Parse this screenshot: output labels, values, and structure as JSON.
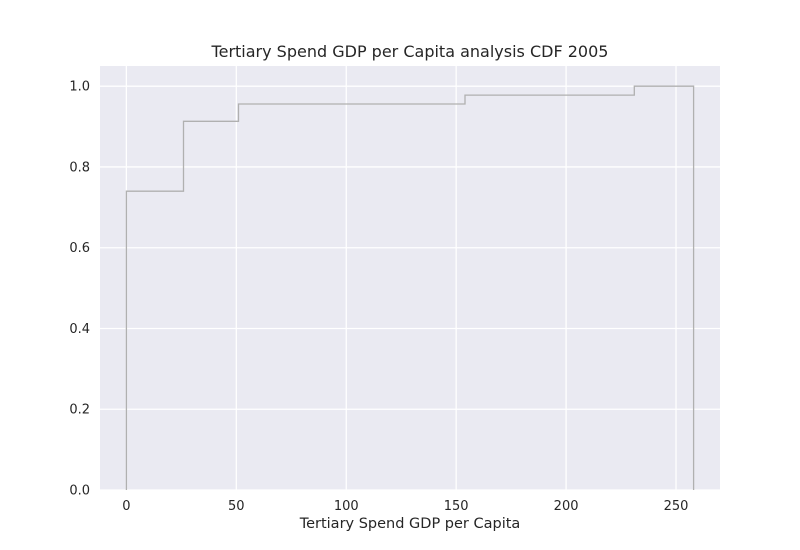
{
  "chart_data": {
    "type": "line",
    "subtype": "step-cdf",
    "title": "Tertiary Spend GDP per Capita analysis CDF 2005",
    "xlabel": "Tertiary Spend GDP per Capita",
    "ylabel": "",
    "xlim": [
      -12,
      270
    ],
    "ylim": [
      0,
      1.05
    ],
    "x_ticks": [
      0,
      50,
      100,
      150,
      200,
      250
    ],
    "y_ticks": [
      0.0,
      0.2,
      0.4,
      0.6,
      0.8,
      1.0
    ],
    "x_tick_labels": [
      "0",
      "50",
      "100",
      "150",
      "200",
      "250"
    ],
    "y_tick_labels": [
      "0.0",
      "0.2",
      "0.4",
      "0.6",
      "0.8",
      "1.0"
    ],
    "grid": true,
    "legend": "none",
    "colors": {
      "background": "#eaeaf2",
      "grid": "#ffffff",
      "line": "#b0b0b0"
    },
    "series": [
      {
        "x": [
          0,
          0,
          26,
          26,
          51,
          51,
          154,
          154,
          231,
          231,
          258,
          258
        ],
        "y": [
          0,
          0.74,
          0.74,
          0.913,
          0.913,
          0.956,
          0.956,
          0.978,
          0.978,
          1.0,
          1.0,
          0
        ]
      }
    ]
  }
}
